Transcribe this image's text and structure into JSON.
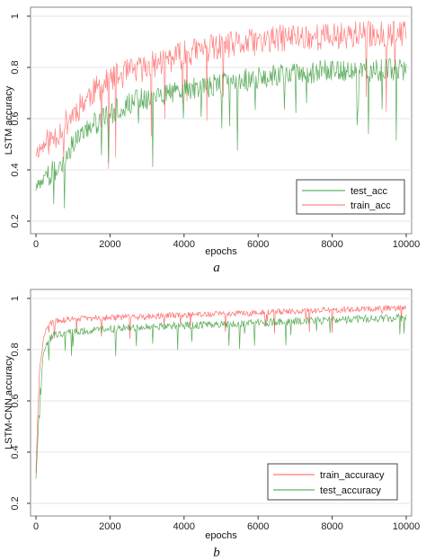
{
  "chart_data": [
    {
      "type": "line",
      "ylabel": "LSTM  accuracy",
      "xlabel": "epochs",
      "caption": "a",
      "xlim": [
        0,
        10000
      ],
      "ylim": [
        0.2,
        1.0
      ],
      "xticks": [
        0,
        2000,
        4000,
        6000,
        8000,
        10000
      ],
      "yticks": [
        0.2,
        0.4,
        0.6,
        0.8,
        1
      ],
      "xtick_labels": [
        "0",
        "2000",
        "4000",
        "6000",
        "8000",
        "10000"
      ],
      "ytick_labels": [
        "0.2",
        "0.4",
        "0.6",
        "0.8",
        "1"
      ],
      "grid": "horizontal",
      "legend_position": "bottom-right",
      "legend": [
        "test_acc",
        "train_acc"
      ],
      "series": [
        {
          "name": "train_acc",
          "color": "#ff6b6b",
          "x": [
            0,
            250,
            500,
            750,
            1000,
            1500,
            2000,
            2500,
            3000,
            3500,
            4000,
            4500,
            5000,
            5500,
            6000,
            6500,
            7000,
            7500,
            8000,
            8500,
            9000,
            9500,
            10000
          ],
          "values": [
            0.47,
            0.5,
            0.53,
            0.57,
            0.62,
            0.7,
            0.75,
            0.78,
            0.8,
            0.83,
            0.85,
            0.87,
            0.88,
            0.89,
            0.9,
            0.91,
            0.92,
            0.92,
            0.92,
            0.93,
            0.93,
            0.93,
            0.93
          ],
          "noise": 0.055
        },
        {
          "name": "test_acc",
          "color": "#3e9e3e",
          "x": [
            0,
            250,
            500,
            750,
            1000,
            1500,
            2000,
            2500,
            3000,
            3500,
            4000,
            4500,
            5000,
            5500,
            6000,
            6500,
            7000,
            7500,
            8000,
            8500,
            9000,
            9500,
            10000
          ],
          "values": [
            0.33,
            0.37,
            0.4,
            0.44,
            0.5,
            0.57,
            0.62,
            0.66,
            0.68,
            0.7,
            0.71,
            0.72,
            0.74,
            0.75,
            0.76,
            0.77,
            0.78,
            0.78,
            0.79,
            0.79,
            0.79,
            0.79,
            0.79
          ],
          "noise": 0.045
        }
      ]
    },
    {
      "type": "line",
      "ylabel": "LSTM-CNN  accuracy",
      "xlabel": "epochs",
      "caption": "b",
      "xlim": [
        0,
        10000
      ],
      "ylim": [
        0.2,
        1.0
      ],
      "xticks": [
        0,
        2000,
        4000,
        6000,
        8000,
        10000
      ],
      "yticks": [
        0.2,
        0.4,
        0.6,
        0.8,
        1
      ],
      "xtick_labels": [
        "0",
        "2000",
        "4000",
        "6000",
        "8000",
        "10000"
      ],
      "ytick_labels": [
        "0.2",
        "0.4",
        "0.6",
        "0.8",
        "1"
      ],
      "grid": "horizontal",
      "legend_position": "bottom-right",
      "legend": [
        "train_accuracy",
        "test_accuracy"
      ],
      "series": [
        {
          "name": "train_accuracy",
          "color": "#ff5555",
          "x": [
            0,
            50,
            100,
            200,
            300,
            500,
            1000,
            2000,
            3000,
            4000,
            5000,
            6000,
            7000,
            8000,
            9000,
            10000
          ],
          "values": [
            0.32,
            0.55,
            0.72,
            0.84,
            0.89,
            0.91,
            0.92,
            0.925,
            0.93,
            0.935,
            0.94,
            0.945,
            0.95,
            0.955,
            0.96,
            0.965
          ],
          "noise": 0.012
        },
        {
          "name": "test_accuracy",
          "color": "#3e9e3e",
          "x": [
            0,
            50,
            100,
            200,
            300,
            500,
            1000,
            2000,
            3000,
            4000,
            5000,
            6000,
            7000,
            8000,
            9000,
            10000
          ],
          "values": [
            0.3,
            0.45,
            0.62,
            0.78,
            0.83,
            0.86,
            0.87,
            0.88,
            0.89,
            0.895,
            0.9,
            0.905,
            0.91,
            0.915,
            0.92,
            0.925
          ],
          "noise": 0.015
        }
      ]
    }
  ]
}
